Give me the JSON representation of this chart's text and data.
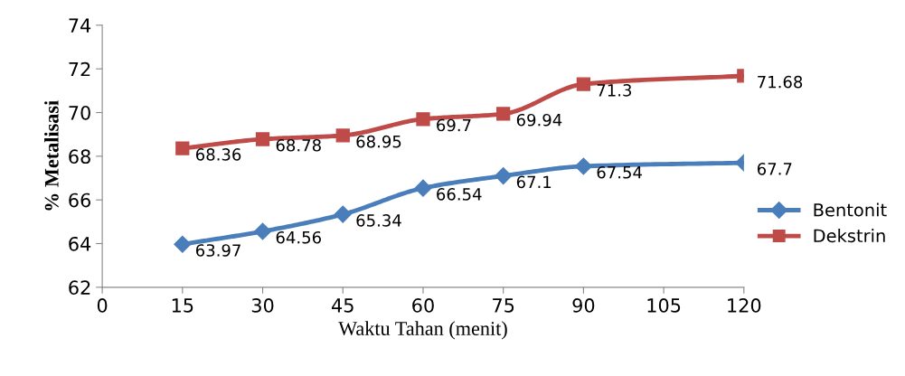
{
  "chart_data": {
    "type": "line",
    "xlabel": "Waktu Tahan (menit)",
    "ylabel": "% Metalisasi",
    "x": [
      15,
      30,
      45,
      60,
      75,
      90,
      120
    ],
    "series": [
      {
        "name": "Bentonit",
        "color": "#4a7ebb",
        "marker": "diamond",
        "values": [
          63.97,
          64.56,
          65.34,
          66.54,
          67.1,
          67.54,
          67.7
        ]
      },
      {
        "name": "Dekstrin",
        "color": "#be4b48",
        "marker": "square",
        "values": [
          68.36,
          68.78,
          68.95,
          69.7,
          69.94,
          71.3,
          71.68
        ]
      }
    ],
    "xlim": [
      0,
      120
    ],
    "xticks": [
      0,
      15,
      30,
      45,
      60,
      75,
      90,
      105,
      120
    ],
    "ylim": [
      62,
      74
    ],
    "yticks": [
      62,
      64,
      66,
      68,
      70,
      72,
      74
    ],
    "data_labels": true,
    "grid": false,
    "legend": "right",
    "line_style": "solid"
  }
}
